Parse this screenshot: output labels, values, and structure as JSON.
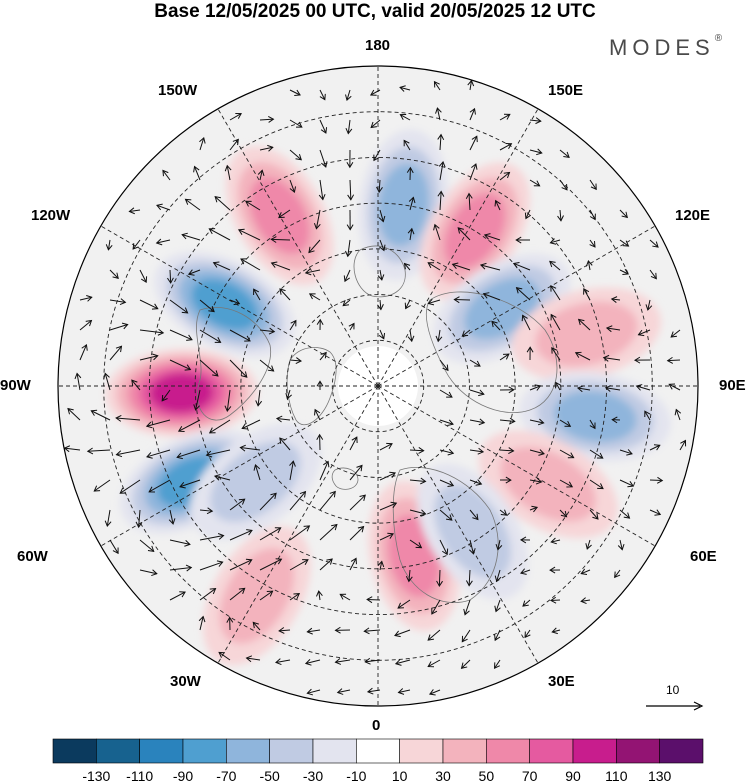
{
  "title": "Base 12/05/2025 00 UTC, valid 20/05/2025 12 UTC",
  "brand": "MODES",
  "brand_mark": "®",
  "longitude_labels": {
    "top": "180",
    "top_left": "150W",
    "top_right": "150E",
    "upper_left": "120W",
    "upper_right": "120E",
    "left": "90W",
    "right": "90E",
    "lower_left": "60W",
    "lower_right": "60E",
    "bottom_left": "30W",
    "bottom_right": "30E",
    "bottom": "0"
  },
  "reference_vector": {
    "label": "10"
  },
  "colorbar": {
    "ticks": [
      "-130",
      "-110",
      "-90",
      "-70",
      "-50",
      "-30",
      "-10",
      "10",
      "30",
      "50",
      "70",
      "90",
      "110",
      "130"
    ],
    "colors": [
      "#0b3a5e",
      "#17628f",
      "#2a83bd",
      "#4f9fd0",
      "#8fb5dc",
      "#c0cbe3",
      "#e3e4ef",
      "#ffffff",
      "#f7d6d8",
      "#f3b3bd",
      "#ef88a9",
      "#e55aa0",
      "#c81d8d",
      "#931473",
      "#5b0f6b"
    ]
  },
  "anomaly_centers": [
    {
      "lon": -88,
      "lat": 47,
      "value": 105
    },
    {
      "lon": -118,
      "lat": 52,
      "value": -75
    },
    {
      "lon": -63,
      "lat": 44,
      "value": -75
    },
    {
      "lon": -150,
      "lat": 47,
      "value": 55
    },
    {
      "lon": 172,
      "lat": 50,
      "value": -55
    },
    {
      "lon": 148,
      "lat": 50,
      "value": 65
    },
    {
      "lon": 122,
      "lat": 58,
      "value": -60
    },
    {
      "lon": 104,
      "lat": 43,
      "value": 45
    },
    {
      "lon": 82,
      "lat": 42,
      "value": -50
    },
    {
      "lon": 60,
      "lat": 47,
      "value": 40
    },
    {
      "lon": 12,
      "lat": 52,
      "value": 60
    },
    {
      "lon": 33,
      "lat": 52,
      "value": -35
    },
    {
      "lon": -30,
      "lat": 37,
      "value": 40
    },
    {
      "lon": -52,
      "lat": 56,
      "value": -30
    }
  ]
}
